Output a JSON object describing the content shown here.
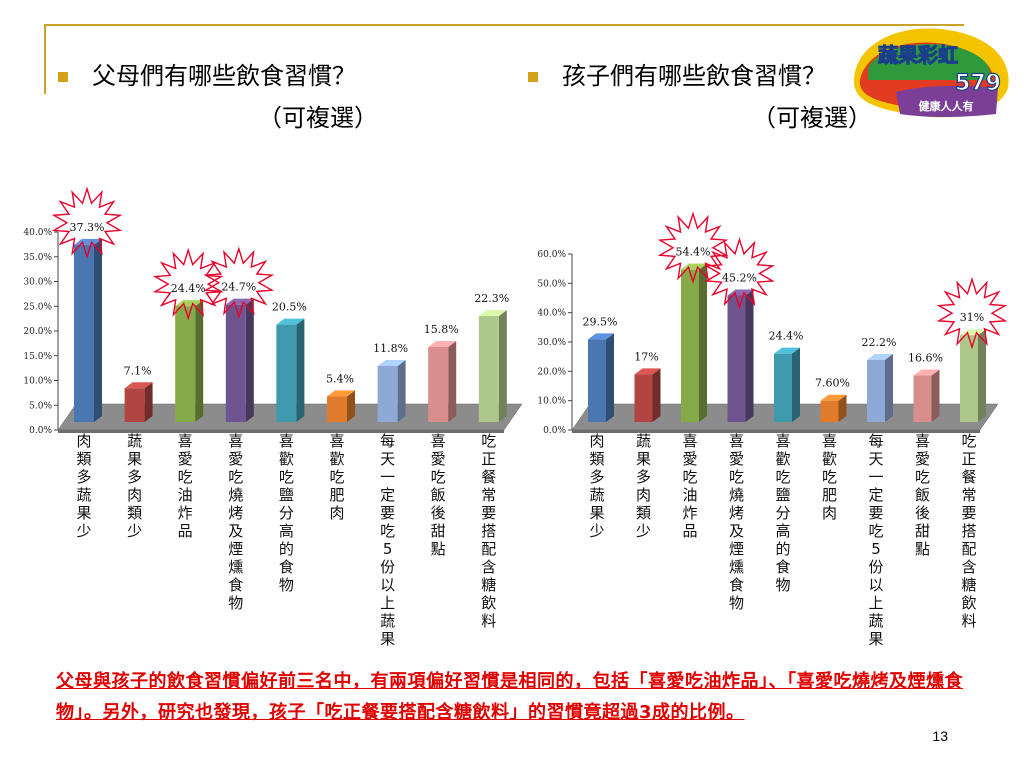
{
  "slide": {
    "left_heading_line1": "父母們有哪些飲食習慣？",
    "left_heading_line2": "（可複選）",
    "right_heading_line1": "孩子們有哪些飲食習慣？",
    "right_heading_line2": "（可複選）",
    "conclusion": "父母與孩子的飲食習慣偏好前三名中，有兩項偏好習慣是相同的，包括「喜愛吃油炸品」、「喜愛吃燒烤及煙燻食物」。另外，研究也發現，孩子「吃正餐要搭配含糖飲料」的習慣竟超過3成的比例。",
    "page_number": "13",
    "logo_text_top": "蔬果彩虹",
    "logo_number": "579",
    "logo_text_bottom": "健康人人有"
  },
  "colors": [
    "#4a76b2",
    "#b04542",
    "#86a94a",
    "#6f558f",
    "#3f9ab0",
    "#e07b2c",
    "#8fa9d6",
    "#d88e8c",
    "#aec78a"
  ],
  "chart_data": [
    {
      "type": "bar",
      "categories": [
        "肉類多蔬果少",
        "蔬果多肉類少",
        "喜愛吃油炸品",
        "喜愛吃燒烤及煙燻食物",
        "喜歡吃鹽分高的食物",
        "喜歡吃肥肉",
        "每天一定要吃5份以上蔬果",
        "喜愛吃飯後甜點",
        "吃正餐常要搭配含糖飲料"
      ],
      "values": [
        37.3,
        7.1,
        24.4,
        24.7,
        20.5,
        5.4,
        11.8,
        15.8,
        22.3
      ],
      "data_labels": [
        "37.3%",
        "7.1%",
        "24.4%",
        "24.7%",
        "20.5%",
        "5.4%",
        "11.8%",
        "15.8%",
        "22.3%"
      ],
      "yticks": [
        "0.0%",
        "5.0%",
        "10.0%",
        "15.0%",
        "20.0%",
        "25.0%",
        "30.0%",
        "35.0%",
        "40.0%"
      ],
      "ylim": [
        0,
        40
      ],
      "highlighted": [
        0,
        2,
        3
      ]
    },
    {
      "type": "bar",
      "categories": [
        "肉類多蔬果少",
        "蔬果多肉類少",
        "喜愛吃油炸品",
        "喜愛吃燒烤及煙燻食物",
        "喜歡吃鹽分高的食物",
        "喜歡吃肥肉",
        "每天一定要吃5份以上蔬果",
        "喜愛吃飯後甜點",
        "吃正餐常要搭配含糖飲料"
      ],
      "values": [
        29.5,
        17,
        54.4,
        45.2,
        24.4,
        7.6,
        22.2,
        16.6,
        31
      ],
      "data_labels": [
        "29.5%",
        "17%",
        "54.4%",
        "45.2%",
        "24.4%",
        "7.60%",
        "22.2%",
        "16.6%",
        "31%"
      ],
      "yticks": [
        "0.0%",
        "10.0%",
        "20.0%",
        "30.0%",
        "40.0%",
        "50.0%",
        "60.0%"
      ],
      "ylim": [
        0,
        60
      ],
      "highlighted": [
        2,
        3,
        8
      ]
    }
  ]
}
